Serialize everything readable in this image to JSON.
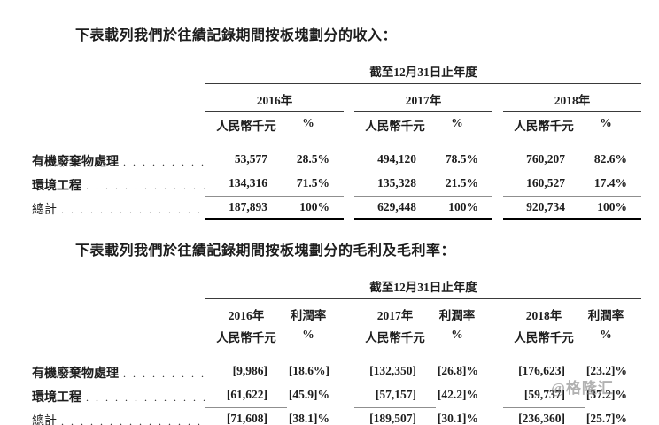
{
  "leader": {
    "dots": ". . . . . . . . . . . . . . . . . . . . . . . . . . . . . . . . . . . . . . . ."
  },
  "watermark": {
    "text": "@格隆汇",
    "color": "#7d7d7d"
  },
  "s1": {
    "title": "下表載列我們於往績記錄期間按板塊劃分的收入：",
    "period": "截至12月31日止年度",
    "years": [
      "2016年",
      "2017年",
      "2018年"
    ],
    "money_label": "人民幣千元",
    "pct_label": "%",
    "rows": [
      {
        "label": "有機廢棄物處理",
        "v": [
          "53,577",
          "28.5%",
          "494,120",
          "78.5%",
          "760,207",
          "82.6%"
        ]
      },
      {
        "label": "環境工程",
        "v": [
          "134,316",
          "71.5%",
          "135,328",
          "21.5%",
          "160,527",
          "17.4%"
        ]
      },
      {
        "label": "總計",
        "v": [
          "187,893",
          "100%",
          "629,448",
          "100%",
          "920,734",
          "100%"
        ]
      }
    ]
  },
  "s2": {
    "title": "下表載列我們於往績記錄期間按板塊劃分的毛利及毛利率：",
    "period": "截至12月31日止年度",
    "years": [
      "2016年",
      "2017年",
      "2018年"
    ],
    "margin_label": "利潤率",
    "money_label": "人民幣千元",
    "pct_label": "%",
    "rows": [
      {
        "label": "有機廢棄物處理",
        "v": [
          "[9,986]",
          "[18.6%]",
          "[132,350]",
          "[26.8]%",
          "[176,623]",
          "[23.2]%"
        ]
      },
      {
        "label": "環境工程",
        "v": [
          "[61,622]",
          "[45.9]%",
          "[57,157]",
          "[42.2]%",
          "[59,737]",
          "[37.2]%"
        ]
      },
      {
        "label": "總計",
        "v": [
          "[71,608]",
          "[38.1]%",
          "[189,507]",
          "[30.1]%",
          "[236,360]",
          "[25.7]%"
        ]
      }
    ]
  }
}
